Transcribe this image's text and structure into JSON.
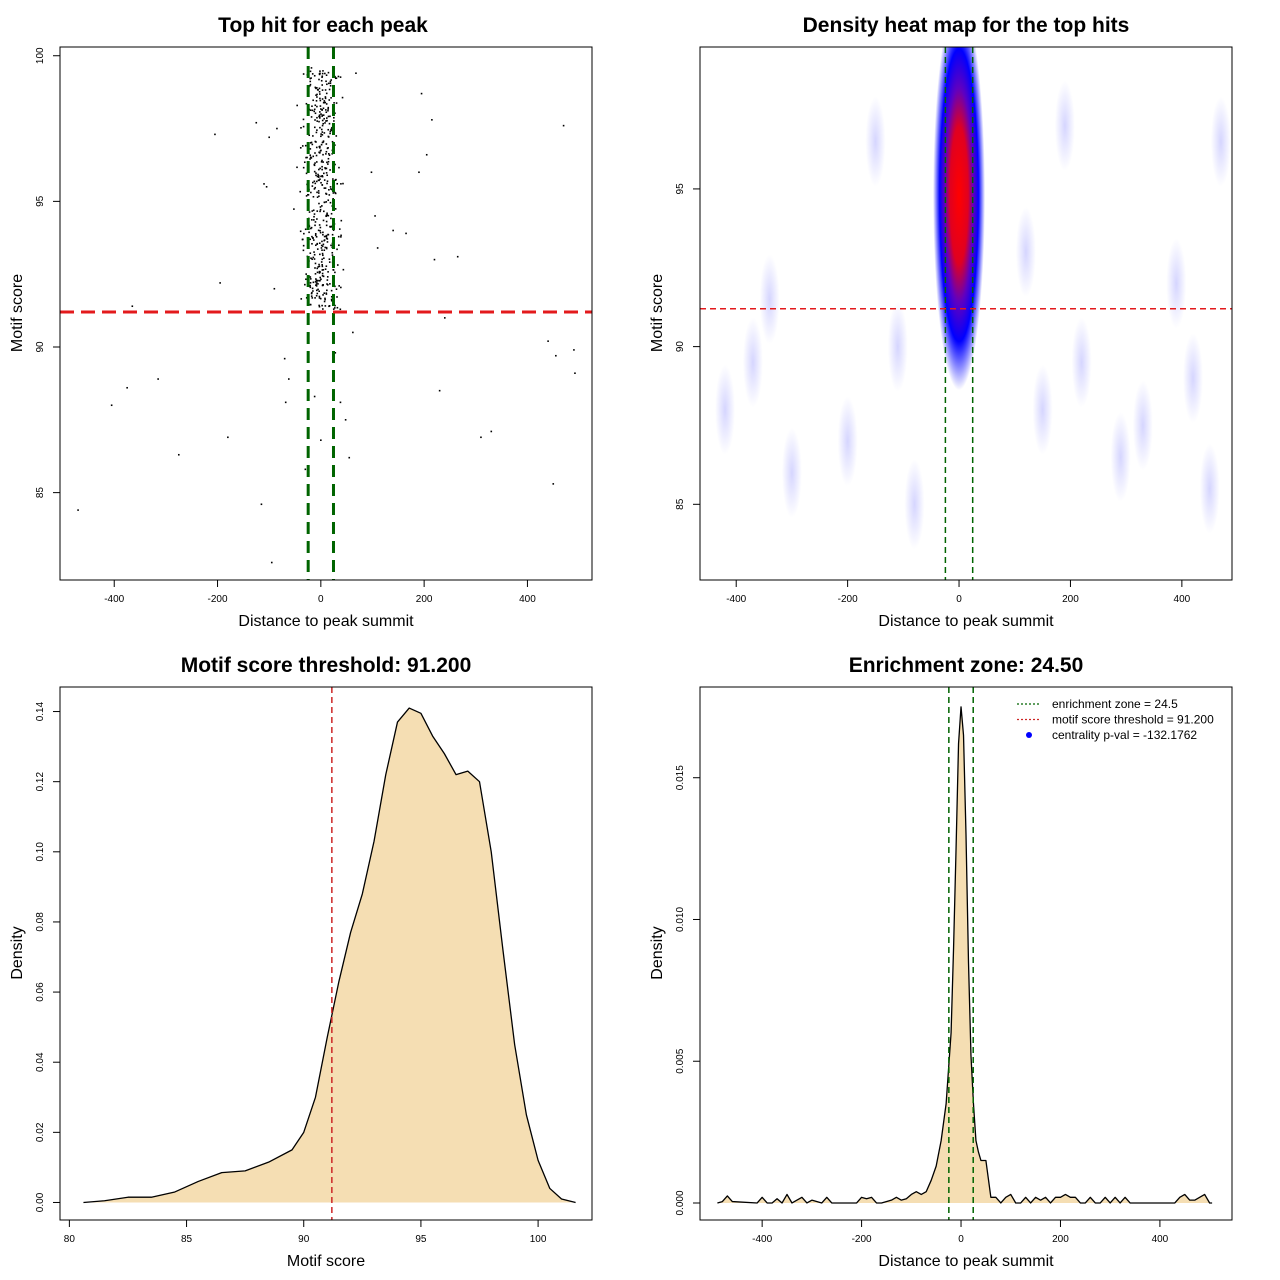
{
  "chart_data": [
    {
      "type": "scatter",
      "title": "Top hit for each peak",
      "xlabel": "Distance to peak summit",
      "ylabel": "Motif score",
      "xlim": [
        -505,
        525
      ],
      "ylim": [
        82,
        100.3
      ],
      "xticks": [
        "-400",
        "-200",
        "0",
        "200",
        "400"
      ],
      "yticks": [
        "85",
        "90",
        "95",
        "100"
      ],
      "threshold_y": 91.2,
      "zone_x": [
        -24.5,
        24.5
      ],
      "outliers": [
        {
          "x": -470,
          "y": 84.4
        },
        {
          "x": -405,
          "y": 88.0
        },
        {
          "x": -375,
          "y": 88.6
        },
        {
          "x": -365,
          "y": 91.4
        },
        {
          "x": -315,
          "y": 88.9
        },
        {
          "x": -275,
          "y": 86.3
        },
        {
          "x": -205,
          "y": 97.3
        },
        {
          "x": -195,
          "y": 92.2
        },
        {
          "x": -180,
          "y": 86.9
        },
        {
          "x": -125,
          "y": 97.7
        },
        {
          "x": -115,
          "y": 84.6
        },
        {
          "x": -110,
          "y": 95.6
        },
        {
          "x": -105,
          "y": 95.5
        },
        {
          "x": -100,
          "y": 97.2
        },
        {
          "x": -95,
          "y": 82.6
        },
        {
          "x": -90,
          "y": 92.0
        },
        {
          "x": -85,
          "y": 97.5
        },
        {
          "x": -70,
          "y": 89.6
        },
        {
          "x": -68,
          "y": 88.1
        },
        {
          "x": -62,
          "y": 88.9
        },
        {
          "x": -30,
          "y": 85.8
        },
        {
          "x": -12,
          "y": 88.3
        },
        {
          "x": 0,
          "y": 86.8
        },
        {
          "x": 25,
          "y": 91.3
        },
        {
          "x": 28,
          "y": 89.8
        },
        {
          "x": 38,
          "y": 88.1
        },
        {
          "x": 48,
          "y": 87.5
        },
        {
          "x": 55,
          "y": 86.2
        },
        {
          "x": 62,
          "y": 90.5
        },
        {
          "x": 68,
          "y": 99.4
        },
        {
          "x": 98,
          "y": 96.0
        },
        {
          "x": 105,
          "y": 94.5
        },
        {
          "x": 110,
          "y": 93.4
        },
        {
          "x": 140,
          "y": 94.0
        },
        {
          "x": 165,
          "y": 93.9
        },
        {
          "x": 190,
          "y": 96.0
        },
        {
          "x": 195,
          "y": 98.7
        },
        {
          "x": 205,
          "y": 96.6
        },
        {
          "x": 215,
          "y": 97.8
        },
        {
          "x": 220,
          "y": 93.0
        },
        {
          "x": 230,
          "y": 88.5
        },
        {
          "x": 240,
          "y": 91.0
        },
        {
          "x": 265,
          "y": 93.1
        },
        {
          "x": 310,
          "y": 86.9
        },
        {
          "x": 330,
          "y": 87.1
        },
        {
          "x": 440,
          "y": 90.2
        },
        {
          "x": 450,
          "y": 85.3
        },
        {
          "x": 455,
          "y": 89.7
        },
        {
          "x": 470,
          "y": 97.6
        },
        {
          "x": 490,
          "y": 89.9
        },
        {
          "x": 492,
          "y": 89.1
        }
      ]
    },
    {
      "type": "heatmap",
      "title": "Density heat map for the top hits",
      "xlabel": "Distance to peak summit",
      "ylabel": "Motif score",
      "xlim": [
        -465,
        490
      ],
      "ylim": [
        82.6,
        99.5
      ],
      "xticks": [
        "-400",
        "-200",
        "0",
        "200",
        "400"
      ],
      "yticks": [
        "85",
        "90",
        "95"
      ],
      "threshold_y": 91.2,
      "zone_x": [
        -24.5,
        24.5
      ],
      "colors": [
        "#ffffff",
        "#0000ff",
        "#ff0000"
      ]
    },
    {
      "type": "area",
      "title": "Motif score threshold: 91.200",
      "xlabel": "Motif score",
      "ylabel": "Density",
      "xlim": [
        79.6,
        102.3
      ],
      "ylim": [
        -0.005,
        0.147
      ],
      "xticks": [
        "80",
        "85",
        "90",
        "95",
        "100"
      ],
      "yticks": [
        "0.00",
        "0.02",
        "0.04",
        "0.06",
        "0.08",
        "0.10",
        "0.12",
        "0.14"
      ],
      "threshold_x": 91.2,
      "fill": "#f5deb3",
      "x": [
        80.6,
        81.5,
        82.5,
        83.5,
        84.5,
        85.5,
        86.5,
        87.5,
        88.5,
        89.5,
        90.0,
        90.5,
        91.0,
        91.5,
        92.0,
        92.5,
        93.0,
        93.5,
        94.0,
        94.5,
        95.0,
        95.5,
        96.0,
        96.5,
        97.0,
        97.5,
        98.0,
        98.5,
        99.0,
        99.5,
        100.0,
        100.5,
        101.0,
        101.6
      ],
      "y": [
        0.0,
        0.0005,
        0.0015,
        0.0015,
        0.003,
        0.006,
        0.0085,
        0.009,
        0.0115,
        0.015,
        0.02,
        0.03,
        0.047,
        0.063,
        0.077,
        0.088,
        0.103,
        0.122,
        0.137,
        0.141,
        0.1395,
        0.133,
        0.128,
        0.122,
        0.123,
        0.12,
        0.1,
        0.072,
        0.045,
        0.025,
        0.012,
        0.004,
        0.001,
        0.0
      ]
    },
    {
      "type": "area",
      "title": "Enrichment zone: 24.50",
      "xlabel": "Distance to peak summit",
      "ylabel": "Density",
      "xlim": [
        -525,
        545
      ],
      "ylim": [
        -0.0006,
        0.0182
      ],
      "xticks": [
        "-400",
        "-200",
        "0",
        "200",
        "400"
      ],
      "yticks": [
        "0.000",
        "0.005",
        "0.010",
        "0.015"
      ],
      "zone_x": [
        -24.5,
        24.5
      ],
      "fill": "#f5deb3",
      "x": [
        -490,
        -480,
        -470,
        -460,
        -410,
        -400,
        -390,
        -380,
        -370,
        -360,
        -350,
        -340,
        -320,
        -310,
        -300,
        -280,
        -270,
        -260,
        -210,
        -200,
        -190,
        -180,
        -170,
        -160,
        -140,
        -130,
        -120,
        -110,
        -100,
        -90,
        -80,
        -70,
        -60,
        -50,
        -40,
        -30,
        -20,
        -15,
        -10,
        -5,
        0,
        5,
        10,
        15,
        20,
        25,
        30,
        35,
        40,
        50,
        60,
        70,
        80,
        90,
        100,
        110,
        120,
        130,
        140,
        150,
        160,
        170,
        180,
        190,
        200,
        210,
        220,
        230,
        240,
        250,
        260,
        270,
        280,
        290,
        300,
        310,
        320,
        330,
        340,
        350,
        360,
        430,
        440,
        450,
        460,
        470,
        480,
        490,
        500,
        505
      ],
      "y": [
        0.0,
        5e-05,
        0.00025,
        5e-05,
        0.0,
        0.0002,
        0.0,
        0.0,
        0.00015,
        0.0,
        0.0003,
        0.0,
        0.0002,
        0.0,
        0.0001,
        0.0,
        0.0002,
        0.0,
        0.0,
        0.0002,
        0.00015,
        0.0002,
        0.0,
        0.0,
        0.0001,
        0.0002,
        0.0001,
        0.00015,
        0.0003,
        0.0004,
        0.0003,
        0.0004,
        0.0008,
        0.0013,
        0.0022,
        0.0035,
        0.006,
        0.009,
        0.0125,
        0.0162,
        0.0175,
        0.0165,
        0.013,
        0.0085,
        0.0052,
        0.0035,
        0.0022,
        0.0018,
        0.0015,
        0.0015,
        0.0002,
        0.0002,
        0.0,
        0.0002,
        0.0003,
        0.0,
        0.0,
        0.0002,
        0.0,
        0.0002,
        0.0001,
        0.0002,
        0.0,
        0.0002,
        0.0002,
        0.0003,
        0.0002,
        0.0002,
        0.0,
        0.0,
        0.0002,
        0.0,
        0.0,
        0.0002,
        0.0,
        0.0002,
        0.0,
        0.0002,
        0.0,
        0.0,
        0.0,
        0.0,
        0.0002,
        0.0003,
        0.0001,
        0.0001,
        0.0002,
        0.0003,
        0.0,
        0.0
      ],
      "legend": [
        {
          "label": "enrichment zone = 24.5",
          "color": "#006400",
          "style": "dotted"
        },
        {
          "label": "motif score threshold = 91.200",
          "color": "#cd2626",
          "style": "dotted"
        },
        {
          "label": "centrality p-val = -132.1762",
          "color": "#0000ff",
          "style": "point"
        }
      ],
      "legend_position": "top-right"
    }
  ]
}
